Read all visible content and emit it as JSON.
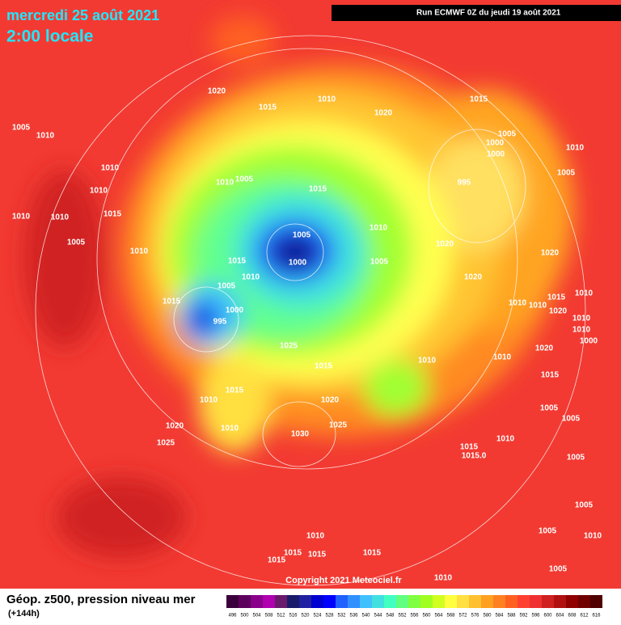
{
  "header": {
    "date": "mercredi 25 août 2021",
    "time": "2:00 locale",
    "run": "Run ECMWF 0Z du jeudi 19 août 2021"
  },
  "isobar_labels": [
    "1020",
    "1010",
    "1015",
    "1020",
    "1015",
    "1005",
    "1010",
    "1005",
    "1000",
    "1010",
    "1000",
    "1005",
    "1010",
    "1010",
    "1005",
    "1010",
    "995",
    "1015",
    "1010",
    "1010",
    "1015",
    "1005",
    "1010",
    "1020",
    "1005",
    "1010",
    "1015",
    "1000",
    "1005",
    "1020",
    "1010",
    "1020",
    "1005",
    "1015",
    "1000",
    "995",
    "1010",
    "1010",
    "1015",
    "1010",
    "1020",
    "1010",
    "1010",
    "1000",
    "1025",
    "1020",
    "1010",
    "1010",
    "1015",
    "1015",
    "1015",
    "1010",
    "1020",
    "1005",
    "1005",
    "1020",
    "1010",
    "1025",
    "1030",
    "1010",
    "1025",
    "1015",
    "1015.0",
    "1005",
    "1005",
    "1005",
    "1010",
    "1010",
    "1015",
    "1015",
    "1015",
    "1015",
    "1005",
    "1010"
  ],
  "copyright": "Copyright 2021 Meteociel.fr",
  "footer": {
    "title": "Géop. z500, pression niveau mer",
    "lead": "(+144h)"
  },
  "scale": {
    "values": [
      496,
      500,
      504,
      508,
      512,
      516,
      520,
      524,
      528,
      532,
      536,
      540,
      544,
      548,
      552,
      556,
      560,
      564,
      568,
      572,
      576,
      580,
      584,
      588,
      592,
      596,
      600,
      604,
      608,
      612,
      616
    ],
    "colors": [
      "#3b003b",
      "#5c005c",
      "#8a008a",
      "#b000b0",
      "#6a1a6a",
      "#1a1a6a",
      "#2020a0",
      "#0000d0",
      "#0000ff",
      "#2060ff",
      "#3090ff",
      "#40c0ff",
      "#40e0e0",
      "#40ffc0",
      "#60ff80",
      "#80ff40",
      "#a0ff20",
      "#d0ff20",
      "#ffff40",
      "#ffe040",
      "#ffc030",
      "#ffa020",
      "#ff8020",
      "#ff6020",
      "#ff4030",
      "#f03030",
      "#d02020",
      "#b01010",
      "#900000",
      "#700000",
      "#500000"
    ]
  }
}
